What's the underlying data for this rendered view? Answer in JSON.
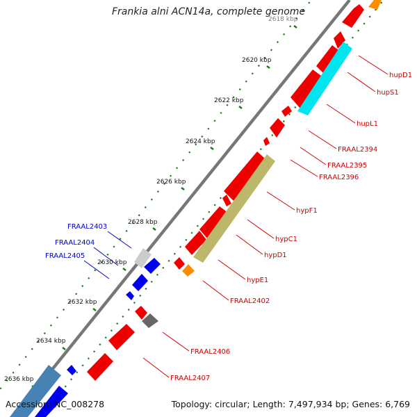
{
  "title": "Frankia alni ACN14a, complete genome",
  "footer": {
    "accession": "Accession: NC_008278",
    "info": "Topology: circular; Length: 7,497,934 bp; Genes: 6,769"
  },
  "ticks": [
    "2618 kbp",
    "2620 kbp",
    "2622 kbp",
    "2624 kbp",
    "2626 kbp",
    "2628 kbp",
    "2630 kbp",
    "2632 kbp",
    "2634 kbp",
    "2636 kbp"
  ],
  "colors": {
    "backbone": "#777777",
    "tick_dots": "#1a7a1a",
    "red_label": "#cc0000",
    "blue_label": "#0000cc",
    "gene_red": "#ee0000",
    "gene_cyan": "#00e5ee",
    "gene_olive": "#bdb76b",
    "gene_orange": "#ff8c00",
    "gene_blue": "#0000ee",
    "gene_steel": "#4682b4",
    "gene_grey": "#555555",
    "gene_light": "#cccccc"
  },
  "right_labels": [
    "hupD1",
    "hupS1",
    "hupL1",
    "FRAAL2394",
    "FRAAL2395",
    "FRAAL2396",
    "hypF1",
    "hypC1",
    "hypD1",
    "hypE1",
    "FRAAL2402",
    "FRAAL2406",
    "FRAAL2407"
  ],
  "left_labels": [
    "FRAAL2403",
    "FRAAL2404",
    "FRAAL2405"
  ]
}
